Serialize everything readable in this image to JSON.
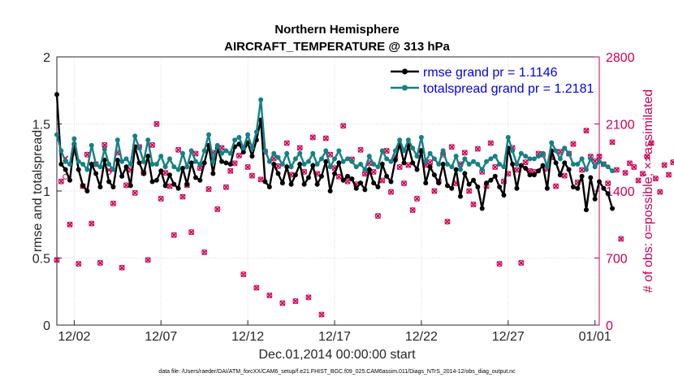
{
  "chart_data": {
    "type": "line",
    "title_line1": "Northern Hemisphere",
    "title_line2": "AIRCRAFT_TEMPERATURE @ 313 hPa",
    "xlabel": "Dec.01,2014 00:00:00 start",
    "ylabel": "rmse and totalspread",
    "y2label": "# of obs: o=possible; ×=assimilated",
    "ylim": [
      0,
      2
    ],
    "y2lim": [
      0,
      2800
    ],
    "y_ticks": [
      "0",
      "0.5",
      "1",
      "1.5",
      "2"
    ],
    "y_tick_values": [
      0,
      0.5,
      1,
      1.5,
      2
    ],
    "y2_ticks": [
      "0",
      "700",
      "1400",
      "2100",
      "2800"
    ],
    "y2_tick_values": [
      0,
      700,
      1400,
      2100,
      2800
    ],
    "x_range_days": [
      0,
      31.25
    ],
    "x_ticks": [
      "12/02",
      "12/07",
      "12/12",
      "12/17",
      "12/22",
      "12/27",
      "01/01"
    ],
    "x_tick_days": [
      1,
      6,
      11,
      16,
      21,
      26,
      31
    ],
    "time_step_days": 0.25,
    "legend_position": "top-right",
    "series": [
      {
        "name": "rmse grand pr = 1.1146",
        "color": "#000000",
        "axis": "left",
        "values": [
          1.72,
          1.2,
          1.16,
          1.08,
          1.35,
          1.16,
          1.04,
          1.0,
          1.2,
          1.13,
          1.03,
          1.23,
          1.07,
          1.03,
          1.23,
          1.11,
          1.18,
          1.04,
          1.33,
          1.21,
          1.13,
          1.26,
          1.07,
          1.08,
          1.15,
          1.04,
          1.12,
          1.05,
          1.02,
          1.17,
          1.05,
          1.21,
          1.1,
          1.08,
          1.21,
          1.34,
          1.13,
          1.32,
          1.22,
          1.21,
          1.2,
          1.33,
          1.35,
          1.29,
          1.36,
          1.26,
          1.38,
          1.53,
          1.07,
          1.03,
          1.2,
          1.13,
          1.06,
          1.18,
          1.05,
          1.12,
          1.2,
          1.05,
          1.1,
          1.19,
          1.05,
          1.11,
          1.22,
          1.0,
          1.13,
          1.21,
          1.08,
          1.11,
          1.09,
          1.02,
          1.06,
          1.01,
          1.16,
          1.06,
          1.03,
          1.2,
          1.11,
          1.07,
          1.23,
          1.35,
          1.21,
          1.34,
          1.21,
          1.16,
          1.3,
          1.06,
          1.18,
          1.12,
          1.06,
          1.2,
          1.04,
          1.02,
          1.16,
          0.96,
          1.13,
          1.05,
          1.08,
          1.03,
          0.87,
          1.06,
          1.08,
          1.11,
          1.03,
          0.97,
          1.32,
          1.2,
          1.02,
          1.19,
          1.17,
          1.12,
          1.12,
          1.15,
          1.19,
          1.02,
          1.3,
          1.21,
          1.12,
          1.21,
          1.16,
          1.03,
          1.02,
          1.11,
          0.86,
          1.1,
          0.94,
          1.07,
          1.02,
          0.98,
          0.87
        ]
      },
      {
        "name": "totalspread grand pr = 1.2181",
        "color": "#138186",
        "axis": "left",
        "values": [
          1.42,
          1.3,
          1.22,
          1.2,
          1.39,
          1.22,
          1.2,
          1.16,
          1.34,
          1.2,
          1.18,
          1.31,
          1.2,
          1.16,
          1.38,
          1.22,
          1.24,
          1.2,
          1.41,
          1.32,
          1.22,
          1.38,
          1.2,
          1.2,
          1.26,
          1.18,
          1.24,
          1.18,
          1.16,
          1.28,
          1.18,
          1.3,
          1.22,
          1.2,
          1.3,
          1.42,
          1.22,
          1.34,
          1.28,
          1.3,
          1.28,
          1.38,
          1.4,
          1.32,
          1.42,
          1.32,
          1.44,
          1.68,
          1.3,
          1.22,
          1.28,
          1.25,
          1.2,
          1.28,
          1.18,
          1.24,
          1.28,
          1.2,
          1.22,
          1.28,
          1.2,
          1.24,
          1.3,
          1.18,
          1.24,
          1.3,
          1.22,
          1.24,
          1.22,
          1.18,
          1.2,
          1.16,
          1.26,
          1.2,
          1.18,
          1.3,
          1.24,
          1.22,
          1.3,
          1.38,
          1.3,
          1.38,
          1.32,
          1.26,
          1.4,
          1.22,
          1.28,
          1.24,
          1.2,
          1.3,
          1.2,
          1.18,
          1.26,
          1.16,
          1.24,
          1.2,
          1.22,
          1.2,
          1.16,
          1.22,
          1.24,
          1.26,
          1.2,
          1.18,
          1.4,
          1.3,
          1.2,
          1.28,
          1.26,
          1.24,
          1.24,
          1.26,
          1.28,
          1.18,
          1.36,
          1.3,
          1.24,
          1.32,
          1.28,
          1.2,
          1.2,
          1.24,
          1.16,
          1.24,
          1.18,
          1.22,
          1.2,
          1.18,
          1.15
        ]
      },
      {
        "name": "obs possible",
        "marker": "circle",
        "color": "#cc0055",
        "axis": "right",
        "values": [
          680,
          1500,
          1550,
          1050,
          1800,
          640,
          1450,
          1780,
          1060,
          1680,
          650,
          1880,
          1600,
          1270,
          1800,
          600,
          1460,
          1620,
          1380,
          1860,
          1590,
          680,
          1880,
          2100,
          1320,
          1590,
          1450,
          940,
          1830,
          1340,
          1460,
          970,
          1790,
          1640,
          760,
          1420,
          1800,
          1210,
          1850,
          1440,
          1610,
          1690,
          1770,
          530,
          1650,
          1560,
          390,
          1520,
          1810,
          310,
          1740,
          1660,
          230,
          1900,
          1570,
          250,
          1850,
          1600,
          290,
          1960,
          1580,
          110,
          1950,
          1780,
          1640,
          1550,
          2080,
          1500,
          1730,
          1470,
          1830,
          1580,
          1690,
          1600,
          1140,
          1510,
          1820,
          1390,
          1750,
          1650,
          1480,
          1670,
          1200,
          1320,
          1820,
          1670,
          1700,
          1400,
          1500,
          1780,
          1080,
          1860,
          1480,
          1680,
          1800,
          1400,
          1260,
          1840,
          1600,
          1450,
          1900,
          1650,
          640,
          1500,
          1580,
          1850,
          1620,
          650,
          1700,
          1610,
          1600,
          1790,
          1780,
          1630,
          1750,
          1450,
          1810,
          1560,
          1790,
          1890,
          1490,
          1620,
          2030,
          1760,
          1710,
          1760,
          1680,
          1480,
          1910,
          1620,
          900,
          1590,
          1690,
          1650,
          1510,
          1580,
          1760,
          1900,
          1530,
          1390,
          1670,
          1570,
          1700,
          1740,
          1680,
          1550,
          1460,
          1870,
          1690,
          1650,
          1400,
          1860,
          1480,
          1680,
          1580,
          1560,
          1340,
          1640,
          1670,
          1480,
          1710,
          1330,
          1770,
          1690,
          1720,
          1580,
          1260,
          1520,
          1780,
          1700,
          1660,
          1580,
          1340,
          1700,
          1680,
          1600,
          1490,
          980,
          1730,
          1650,
          1550,
          1850,
          1510,
          1380,
          1600,
          1720,
          1650,
          610,
          1540,
          1820,
          1560,
          1690,
          1770,
          1580,
          1220,
          1690,
          1720,
          1560,
          1600,
          1860,
          1620,
          680,
          1700,
          1640,
          1500,
          1870,
          1350,
          1590,
          1720,
          1580,
          1530,
          1700,
          1190,
          1600,
          1800,
          1660,
          1620,
          1750,
          1430,
          1640,
          1560,
          1440,
          1790,
          1680,
          1220,
          1700,
          1610,
          1570,
          1880,
          1630,
          640,
          1550,
          1770,
          1490,
          1620,
          1770,
          1480,
          1560,
          1650,
          1360,
          1720,
          1590,
          1700,
          1720,
          1470,
          1510,
          1620,
          1750,
          640,
          1570,
          1720,
          1530,
          610,
          1380,
          1860,
          1570,
          1460,
          1810,
          1640,
          1440,
          1660,
          1580,
          1560,
          1270,
          1700,
          1640,
          1820,
          1530,
          1480,
          1650,
          640,
          1520,
          1710,
          1560,
          1620,
          1480,
          1780,
          1600,
          1660,
          1560,
          1690,
          1360,
          1590,
          1650,
          1690,
          1480,
          1710,
          1560,
          1600,
          1690,
          1370,
          1630,
          1590,
          1620,
          1700,
          1480,
          1650,
          1560,
          1600,
          1400,
          1700,
          1480,
          1590,
          1510,
          1680,
          1430,
          1630,
          1540,
          1720,
          1590,
          1620,
          1470,
          1680,
          1530,
          1600,
          1680,
          1450,
          1620,
          1540,
          1700,
          1460,
          1590,
          1620,
          1500,
          1680,
          1580,
          1440,
          1610,
          1550,
          1700,
          1490,
          1640,
          1560,
          1470,
          1650,
          1530,
          1600,
          1500,
          1690,
          1560,
          1610,
          1500,
          1560,
          1640,
          1500,
          1590,
          1620,
          1450,
          1680,
          1570,
          1520,
          1600,
          1550,
          1480,
          1640,
          1590,
          1520,
          1610,
          1570,
          1500,
          1630,
          1550,
          1590,
          1520,
          1600,
          1480,
          1640,
          1560,
          1530,
          1590,
          1610,
          1500,
          1570,
          1620,
          1510,
          1560,
          1600,
          1480,
          1620,
          1540,
          1580,
          1550,
          1600,
          1510,
          1580,
          1560,
          1540,
          1590,
          1520,
          1570,
          1560,
          1600,
          1510,
          1550,
          1580,
          1530,
          1570,
          1550,
          1590,
          1520,
          1560,
          1540,
          1570,
          1530,
          1580,
          1550,
          1560,
          1540,
          1570,
          1530,
          1550,
          1560,
          1540,
          1550
        ]
      },
      {
        "name": "obs assimilated",
        "marker": "x",
        "color": "#cc0055",
        "axis": "right",
        "values": [
          680,
          1500,
          1740,
          1050,
          1800,
          640,
          1450,
          1780,
          1060,
          1680,
          650,
          1880,
          1620,
          1270,
          1800,
          600,
          1460,
          1620,
          1380,
          1860,
          1590,
          680,
          1880,
          2100,
          1320,
          1590,
          1450,
          940,
          1830,
          1340,
          1460,
          970,
          1790,
          1640,
          760,
          1420,
          1800,
          1210,
          1850,
          1440,
          1610,
          1690,
          1770,
          530,
          1650,
          1560,
          390,
          1520,
          1810,
          310,
          1740,
          1660,
          230,
          1900,
          1570,
          250,
          1850,
          1600,
          290,
          1960,
          1580,
          110,
          1950,
          1780,
          1640,
          1550,
          2080,
          1500,
          1730,
          1470,
          1830,
          1580,
          1690,
          1600,
          1140,
          1510,
          1820,
          1390,
          1750,
          1650,
          1480,
          1670,
          1200,
          1320,
          1820,
          1670,
          1700,
          1400,
          1500,
          1780,
          1080,
          1860,
          1480,
          1680,
          1800,
          1400,
          1260,
          1840,
          1600,
          1450,
          1900,
          1650,
          640,
          1500,
          1580,
          1850,
          1620,
          650,
          1700,
          1610,
          1600,
          1790,
          1780,
          1630,
          1750,
          1450,
          1810,
          1560,
          1790,
          1890,
          1490,
          1620,
          2030,
          1760,
          1710,
          1760,
          1680,
          1480,
          1910,
          1620,
          900,
          1590,
          1690,
          1650,
          1510,
          1580,
          1760,
          1900,
          1530,
          1390,
          1670,
          1570,
          1700,
          1740,
          1680,
          1550,
          1460,
          1870,
          1690,
          1650,
          1400,
          1860,
          1480,
          1680,
          1580,
          1560,
          1340,
          1640,
          1670,
          1480,
          1710,
          1330,
          1770,
          1690,
          1720,
          1580,
          1260,
          1520,
          1780,
          1700,
          1660,
          1580,
          1340,
          1700,
          1680,
          1600,
          1490,
          980,
          1730,
          1650,
          1550,
          1850,
          1510,
          1380,
          1600,
          1720,
          1650,
          610,
          1540,
          1820,
          1560,
          1690,
          1770,
          1580,
          1220,
          1690,
          1720,
          1560,
          1600,
          1860,
          1620,
          680,
          1700,
          1640,
          1500,
          1870,
          1350,
          1590,
          1720,
          1580,
          1530,
          1700,
          1190,
          1600,
          1800,
          1660,
          1620,
          1750,
          1430,
          1640,
          1560,
          1440,
          1790,
          1680,
          1220,
          1700,
          1610,
          1570,
          1880,
          1630,
          640,
          1550,
          1770,
          1490,
          1620,
          1770,
          1480,
          1560,
          1650,
          1360,
          1720,
          1590,
          1700,
          1720,
          1470,
          1510,
          1620,
          1750,
          640,
          1570,
          1720,
          1530,
          610,
          1380,
          1860,
          1570,
          1460,
          1810,
          1640,
          1440,
          1660,
          1580,
          1560,
          1270,
          1700,
          1640,
          1820,
          1530,
          1480,
          1650,
          640,
          1520,
          1710,
          1560,
          1620,
          1480,
          1780,
          1600,
          1660,
          1560,
          1690,
          1360,
          1590,
          1650,
          1690,
          1480,
          1710,
          1560,
          1600,
          1690,
          1370,
          1630,
          1590,
          1620,
          1700,
          1480,
          1650,
          1560,
          1600,
          1400,
          1700,
          1480,
          1590,
          1510,
          1680,
          1430,
          1630,
          1540,
          1720,
          1590,
          1620,
          1470,
          1680,
          1530,
          1600,
          1680,
          1450,
          1620,
          1540,
          1700,
          1460,
          1590,
          1620,
          1500,
          1680,
          1580,
          1440,
          1610,
          1550,
          1700,
          1490,
          1640,
          1560,
          1470,
          1650,
          1530,
          1600,
          1500,
          1690,
          1560,
          1610,
          1500,
          1560,
          1640,
          1500,
          1590,
          1620,
          1450,
          1680,
          1570,
          1520,
          1600,
          1550,
          1480,
          1640,
          1590,
          1520,
          1610,
          1570,
          1500,
          1630,
          1550,
          1590,
          1520,
          1600,
          1480,
          1640,
          1560,
          1530,
          1590,
          1610,
          1500,
          1570,
          1620,
          1510,
          1560,
          1600,
          1480,
          1620,
          1540,
          1580,
          1550,
          1600,
          1510,
          1580,
          1560,
          1540,
          1590,
          1520,
          1570,
          1560,
          1600,
          1510,
          1550,
          1580,
          1530,
          1570,
          1550,
          1590,
          1520,
          1560,
          1540,
          1570,
          1530,
          1580,
          1550,
          1560,
          1540,
          1570,
          1530,
          1550,
          1560,
          1540,
          1550
        ]
      }
    ]
  },
  "footer": "data file: /Users/raeder/DAI/ATM_forcXX/CAM6_setup/f.e21.FHIST_BGC.f09_025.CAM6assim.011/Diags_NTrS_2014-12/obs_diag_output.nc"
}
